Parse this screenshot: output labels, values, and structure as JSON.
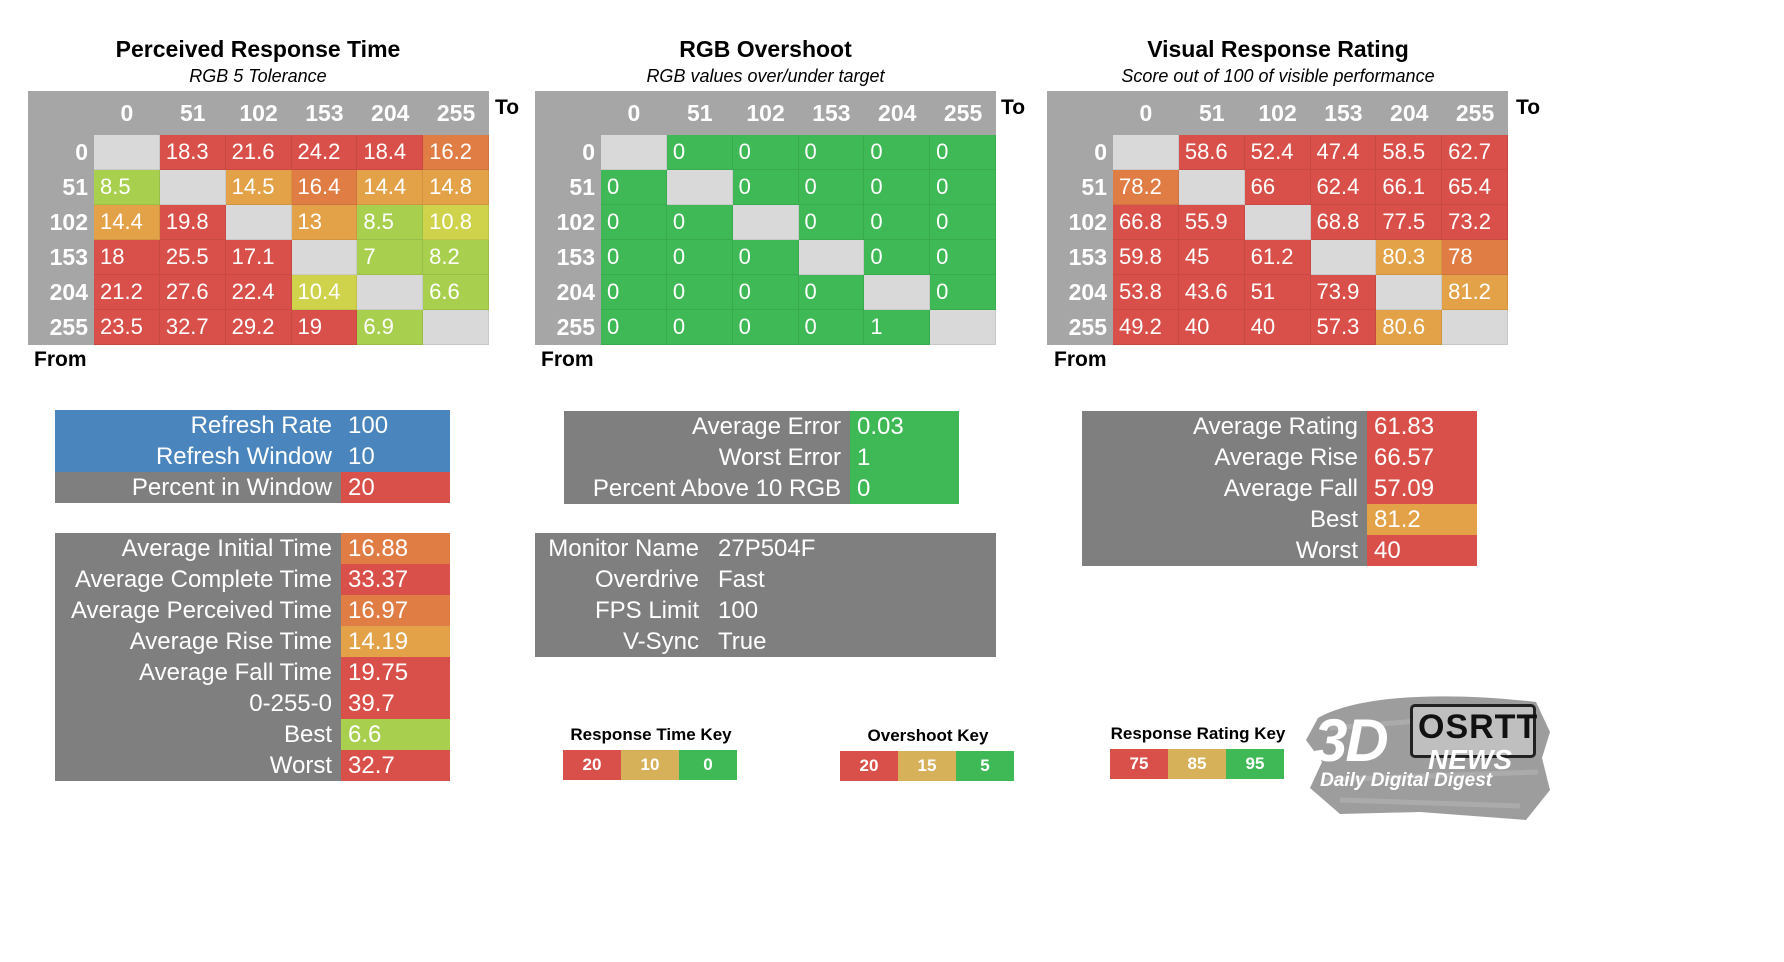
{
  "colors": {
    "red": "#d9504a",
    "orange": "#df7d45",
    "amber": "#e3a247",
    "yellowgreen": "#a9cf4f",
    "yellow": "#cfd34b",
    "green": "#3fb956",
    "gray": "#7f7f7f",
    "lightgray": "#d9d9d9",
    "blue": "#4a86bd",
    "keyRed": "#d9504a",
    "keyAmber": "#d6b15a",
    "keyGreen": "#3fb956"
  },
  "axes": {
    "to": "To",
    "from": "From",
    "levels": [
      "0",
      "51",
      "102",
      "153",
      "204",
      "255"
    ]
  },
  "chart_data": [
    {
      "type": "heatmap",
      "title": "Perceived Response Time",
      "subtitle": "RGB 5 Tolerance",
      "xlabel": "To",
      "ylabel": "From",
      "x": [
        "0",
        "51",
        "102",
        "153",
        "204",
        "255"
      ],
      "y": [
        "0",
        "51",
        "102",
        "153",
        "204",
        "255"
      ],
      "values": [
        [
          null,
          18.3,
          21.6,
          24.2,
          18.4,
          16.2
        ],
        [
          8.5,
          null,
          14.5,
          16.4,
          14.4,
          14.8
        ],
        [
          14.4,
          19.8,
          null,
          13,
          8.5,
          10.8
        ],
        [
          18,
          25.5,
          17.1,
          null,
          7,
          8.2
        ],
        [
          21.2,
          27.6,
          22.4,
          10.4,
          null,
          6.6
        ],
        [
          23.5,
          32.7,
          29.2,
          19,
          6.9,
          null
        ]
      ],
      "cell_colors": [
        [
          null,
          "red",
          "red",
          "red",
          "red",
          "orange"
        ],
        [
          "yellowgreen",
          null,
          "amber",
          "orange",
          "amber",
          "amber"
        ],
        [
          "amber",
          "red",
          null,
          "amber",
          "yellowgreen",
          "yellow"
        ],
        [
          "red",
          "red",
          "red",
          null,
          "yellowgreen",
          "yellowgreen"
        ],
        [
          "red",
          "red",
          "red",
          "yellow",
          null,
          "yellowgreen"
        ],
        [
          "red",
          "red",
          "red",
          "red",
          "yellowgreen",
          null
        ]
      ]
    },
    {
      "type": "heatmap",
      "title": "RGB Overshoot",
      "subtitle": "RGB values over/under target",
      "xlabel": "To",
      "ylabel": "From",
      "x": [
        "0",
        "51",
        "102",
        "153",
        "204",
        "255"
      ],
      "y": [
        "0",
        "51",
        "102",
        "153",
        "204",
        "255"
      ],
      "values": [
        [
          null,
          0,
          0,
          0,
          0,
          0
        ],
        [
          0,
          null,
          0,
          0,
          0,
          0
        ],
        [
          0,
          0,
          null,
          0,
          0,
          0
        ],
        [
          0,
          0,
          0,
          null,
          0,
          0
        ],
        [
          0,
          0,
          0,
          0,
          null,
          0
        ],
        [
          0,
          0,
          0,
          0,
          1,
          null
        ]
      ],
      "cell_colors": [
        [
          null,
          "green",
          "green",
          "green",
          "green",
          "green"
        ],
        [
          "green",
          null,
          "green",
          "green",
          "green",
          "green"
        ],
        [
          "green",
          "green",
          null,
          "green",
          "green",
          "green"
        ],
        [
          "green",
          "green",
          "green",
          null,
          "green",
          "green"
        ],
        [
          "green",
          "green",
          "green",
          "green",
          null,
          "green"
        ],
        [
          "green",
          "green",
          "green",
          "green",
          "green",
          null
        ]
      ]
    },
    {
      "type": "heatmap",
      "title": "Visual Response Rating",
      "subtitle": "Score out of 100 of visible performance",
      "xlabel": "To",
      "ylabel": "From",
      "x": [
        "0",
        "51",
        "102",
        "153",
        "204",
        "255"
      ],
      "y": [
        "0",
        "51",
        "102",
        "153",
        "204",
        "255"
      ],
      "values": [
        [
          null,
          58.6,
          52.4,
          47.4,
          58.5,
          62.7
        ],
        [
          78.2,
          null,
          66,
          62.4,
          66.1,
          65.4
        ],
        [
          66.8,
          55.9,
          null,
          68.8,
          77.5,
          73.2
        ],
        [
          59.8,
          45,
          61.2,
          null,
          80.3,
          78
        ],
        [
          53.8,
          43.6,
          51,
          73.9,
          null,
          81.2
        ],
        [
          49.2,
          40,
          40,
          57.3,
          80.6,
          null
        ]
      ],
      "cell_colors": [
        [
          null,
          "red",
          "red",
          "red",
          "red",
          "red"
        ],
        [
          "orange",
          null,
          "red",
          "red",
          "red",
          "red"
        ],
        [
          "red",
          "red",
          null,
          "red",
          "red",
          "red"
        ],
        [
          "red",
          "red",
          "red",
          null,
          "amber",
          "orange"
        ],
        [
          "red",
          "red",
          "red",
          "red",
          null,
          "amber"
        ],
        [
          "red",
          "red",
          "red",
          "red",
          "amber",
          null
        ]
      ]
    }
  ],
  "refresh_table": [
    {
      "label": "Refresh Rate",
      "value": "100",
      "label_color": "blue",
      "value_color": "blue"
    },
    {
      "label": "Refresh Window",
      "value": "10",
      "label_color": "blue",
      "value_color": "blue"
    },
    {
      "label": "Percent in Window",
      "value": "20",
      "label_color": "gray",
      "value_color": "red"
    }
  ],
  "times_table": [
    {
      "label": "Average Initial Time",
      "value": "16.88",
      "value_color": "orange"
    },
    {
      "label": "Average Complete Time",
      "value": "33.37",
      "value_color": "red"
    },
    {
      "label": "Average Perceived Time",
      "value": "16.97",
      "value_color": "orange"
    },
    {
      "label": "Average Rise Time",
      "value": "14.19",
      "value_color": "amber"
    },
    {
      "label": "Average Fall Time",
      "value": "19.75",
      "value_color": "red"
    },
    {
      "label": "0-255-0",
      "value": "39.7",
      "value_color": "red"
    },
    {
      "label": "Best",
      "value": "6.6",
      "value_color": "yellowgreen"
    },
    {
      "label": "Worst",
      "value": "32.7",
      "value_color": "red"
    }
  ],
  "error_table": [
    {
      "label": "Average Error",
      "value": "0.03",
      "value_color": "green"
    },
    {
      "label": "Worst Error",
      "value": "1",
      "value_color": "green"
    },
    {
      "label": "Percent Above 10 RGB",
      "value": "0",
      "value_color": "green"
    }
  ],
  "monitor_table": [
    {
      "label": "Monitor Name",
      "value": "27P504F"
    },
    {
      "label": "Overdrive",
      "value": "Fast"
    },
    {
      "label": "FPS Limit",
      "value": "100"
    },
    {
      "label": "V-Sync",
      "value": "True"
    }
  ],
  "rating_table": [
    {
      "label": "Average Rating",
      "value": "61.83",
      "value_color": "red"
    },
    {
      "label": "Average Rise",
      "value": "66.57",
      "value_color": "red"
    },
    {
      "label": "Average Fall",
      "value": "57.09",
      "value_color": "red"
    },
    {
      "label": "Best",
      "value": "81.2",
      "value_color": "amber"
    },
    {
      "label": "Worst",
      "value": "40",
      "value_color": "red"
    }
  ],
  "keys": [
    {
      "title": "Response Time Key",
      "cells": [
        {
          "v": "20",
          "c": "keyRed"
        },
        {
          "v": "10",
          "c": "keyAmber"
        },
        {
          "v": "0",
          "c": "keyGreen"
        }
      ]
    },
    {
      "title": "Overshoot Key",
      "cells": [
        {
          "v": "20",
          "c": "keyRed"
        },
        {
          "v": "15",
          "c": "keyAmber"
        },
        {
          "v": "5",
          "c": "keyGreen"
        }
      ]
    },
    {
      "title": "Response Rating Key",
      "cells": [
        {
          "v": "75",
          "c": "keyRed"
        },
        {
          "v": "85",
          "c": "keyAmber"
        },
        {
          "v": "95",
          "c": "keyGreen"
        }
      ]
    }
  ],
  "logo": {
    "brand": "3D",
    "brand2": "NEWS",
    "tag": "OSRTT",
    "tagline": "Daily Digital Digest"
  }
}
